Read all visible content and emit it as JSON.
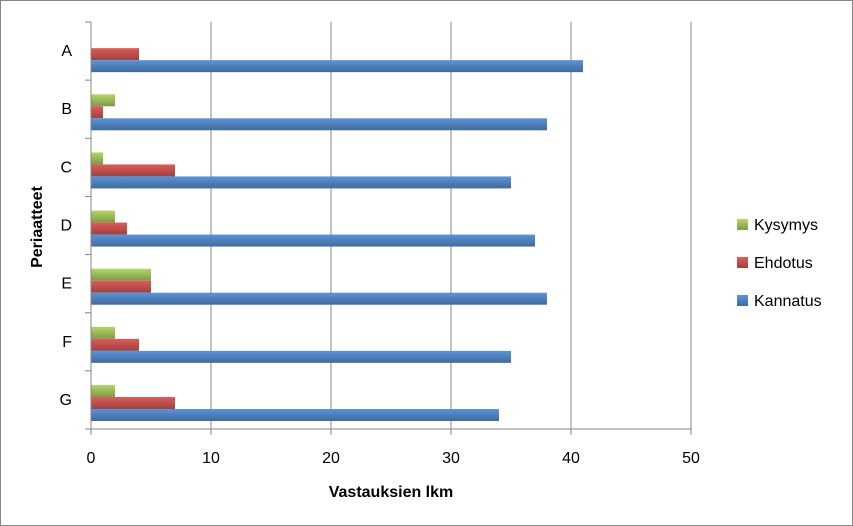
{
  "chart_data": {
    "type": "bar",
    "orientation": "horizontal",
    "categories": [
      "A",
      "B",
      "C",
      "D",
      "E",
      "F",
      "G"
    ],
    "series": [
      {
        "name": "Kysymys",
        "color": "#9BBB59",
        "values": [
          0,
          2,
          1,
          2,
          5,
          2,
          2
        ]
      },
      {
        "name": "Ehdotus",
        "color": "#C0504D",
        "values": [
          4,
          1,
          7,
          3,
          5,
          4,
          7
        ]
      },
      {
        "name": "Kannatus",
        "color": "#4F81BD",
        "values": [
          41,
          38,
          35,
          37,
          38,
          35,
          34
        ]
      }
    ],
    "xlabel": "Vastauksien lkm",
    "ylabel": "Periaatteet",
    "xlim": [
      0,
      50
    ],
    "xticks": [
      0,
      10,
      20,
      30,
      40,
      50
    ],
    "grid": true,
    "legend_position": "right"
  }
}
